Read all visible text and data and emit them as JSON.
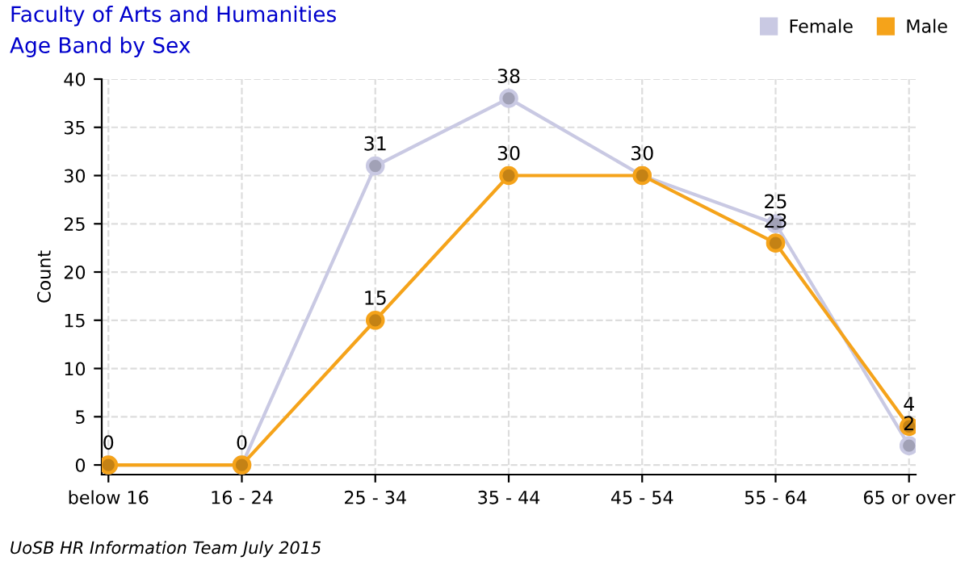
{
  "chart_data": {
    "type": "line",
    "title": "Faculty of Arts and Humanities",
    "subtitle": "Age Band by Sex",
    "ylabel": "Count",
    "categories": [
      "below 16",
      "16 - 24",
      "25 - 34",
      "35 - 44",
      "45 - 54",
      "55 - 64",
      "65 or over"
    ],
    "series": [
      {
        "name": "Female",
        "color": "#c9c9e3",
        "values": [
          0,
          0,
          31,
          38,
          30,
          25,
          2
        ],
        "value_labels": [
          null,
          null,
          "31",
          "38",
          null,
          "25",
          "2"
        ]
      },
      {
        "name": "Male",
        "color": "#f5a31a",
        "values": [
          0,
          0,
          15,
          30,
          30,
          23,
          4
        ],
        "value_labels": [
          "0",
          "0",
          "15",
          "30",
          "30",
          "23",
          "4"
        ]
      }
    ],
    "ylim": [
      -1,
      40
    ],
    "yticks": [
      0,
      5,
      10,
      15,
      20,
      25,
      30,
      35,
      40
    ],
    "grid": true,
    "legend": "top right",
    "marker": "circle",
    "line_style": "solid",
    "annotations": [
      "UoSB HR Information Team July 2015"
    ]
  }
}
